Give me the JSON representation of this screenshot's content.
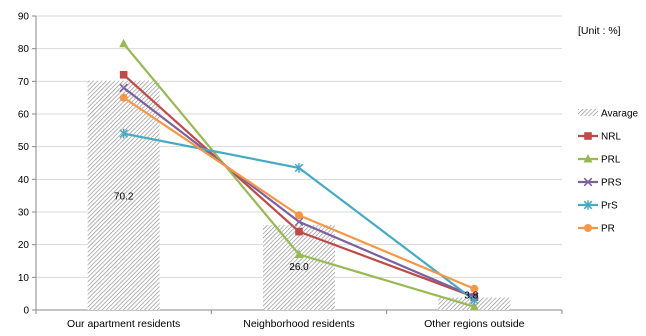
{
  "chart_data": {
    "type": "bar",
    "categories": [
      "Our apartment residents",
      "Neighborhood residents",
      "Other regions outside"
    ],
    "ylim": [
      0,
      90
    ],
    "yticks": [
      0,
      10,
      20,
      30,
      40,
      50,
      60,
      70,
      80,
      90
    ],
    "unit_label": "[Unit : %]",
    "bar_series": {
      "name": "Avarage",
      "values": [
        70.2,
        26.0,
        3.8
      ],
      "data_labels": [
        "70.2",
        "26.0",
        "3.8"
      ]
    },
    "line_series": [
      {
        "name": "NRL",
        "color": "#be4b48",
        "marker": "square",
        "values": [
          72.0,
          24.0,
          4.0
        ]
      },
      {
        "name": "PRL",
        "color": "#98b954",
        "marker": "triangle",
        "values": [
          81.5,
          17.0,
          1.0
        ]
      },
      {
        "name": "PRS",
        "color": "#7d60a0",
        "marker": "x",
        "values": [
          68.0,
          27.0,
          4.0
        ]
      },
      {
        "name": "PrS",
        "color": "#46aac5",
        "marker": "star",
        "values": [
          54.0,
          43.5,
          3.0
        ]
      },
      {
        "name": "PR",
        "color": "#f79646",
        "marker": "circle",
        "values": [
          65.0,
          29.0,
          6.5
        ]
      }
    ],
    "grid": true,
    "legend": "right"
  }
}
